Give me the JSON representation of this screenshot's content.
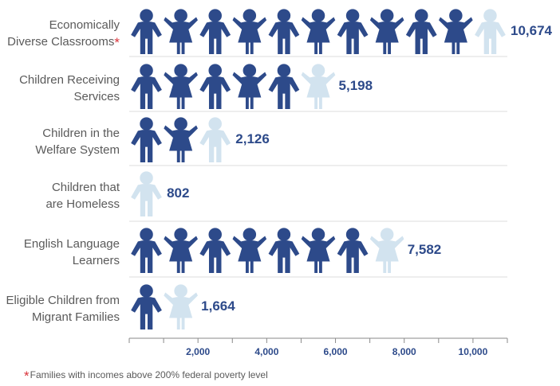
{
  "chart_data": {
    "type": "bar",
    "style": "pictograph",
    "categories": [
      [
        "Economically",
        "Diverse Classrooms"
      ],
      [
        "Children Receiving",
        "Services"
      ],
      [
        "Children in the",
        "Welfare System"
      ],
      [
        "Children that",
        "are Homeless"
      ],
      [
        "English Language",
        "Learners"
      ],
      [
        "Eligible Children from",
        "Migrant Families"
      ]
    ],
    "category_markers": [
      "*",
      "",
      "",
      "",
      "",
      ""
    ],
    "values": [
      10674,
      5198,
      2126,
      802,
      7582,
      1664
    ],
    "value_labels": [
      "10,674",
      "5,198",
      "2,126",
      "802",
      "7,582",
      "1,664"
    ],
    "icon_unit": 1000,
    "xlim": [
      0,
      11000
    ],
    "xticks": [
      2000,
      4000,
      6000,
      8000,
      10000
    ],
    "xtick_labels": [
      "2,000",
      "4,000",
      "6,000",
      "8,000",
      "10,000"
    ],
    "colors": {
      "filled": "#2d4a8a",
      "empty": "#d2e3ef",
      "marker": "#d9333a",
      "grid": "#dcdcdc"
    },
    "icons": [
      "boy-icon",
      "girl-icon"
    ]
  },
  "footnote": {
    "marker": "*",
    "text": "Families with incomes above 200% federal poverty level"
  }
}
